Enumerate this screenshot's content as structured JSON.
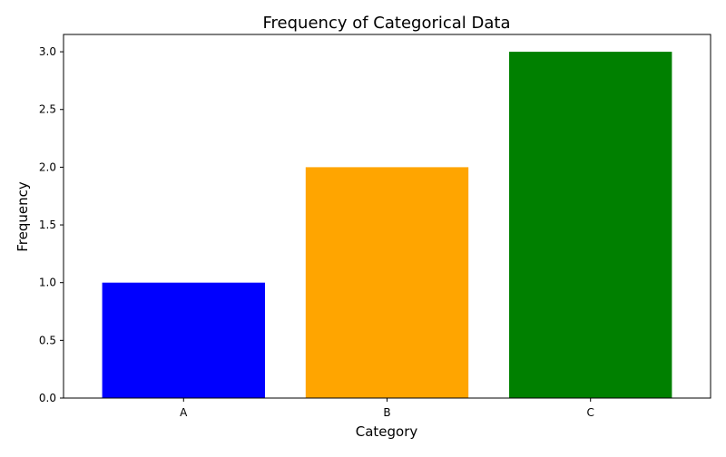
{
  "chart_data": {
    "type": "bar",
    "title": "Frequency of Categorical Data",
    "xlabel": "Category",
    "ylabel": "Frequency",
    "categories": [
      "A",
      "B",
      "C"
    ],
    "values": [
      1,
      2,
      3
    ],
    "colors": [
      "#0000ff",
      "#ffa500",
      "#008000"
    ],
    "ylim": [
      0,
      3.15
    ],
    "yticks": [
      0.0,
      0.5,
      1.0,
      1.5,
      2.0,
      2.5,
      3.0
    ],
    "ytick_labels": [
      "0.0",
      "0.5",
      "1.0",
      "1.5",
      "2.0",
      "2.5",
      "3.0"
    ],
    "grid": false,
    "legend": "none"
  }
}
